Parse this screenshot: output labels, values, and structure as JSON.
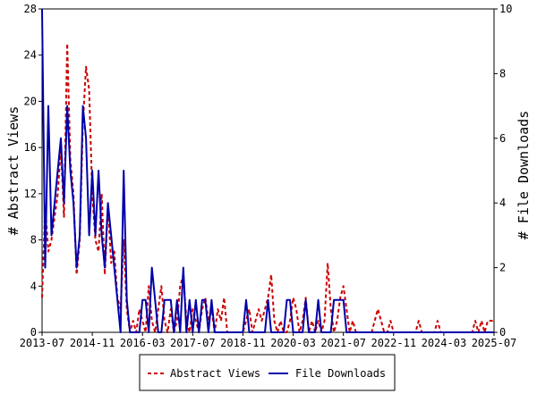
{
  "chart_data": {
    "type": "line",
    "title": "",
    "xlabel": "",
    "ylabel": "# Abstract Views",
    "y2label": "# File Downloads",
    "x_ticks": [
      "2013-07",
      "2014-11",
      "2016-03",
      "2017-07",
      "2018-11",
      "2020-03",
      "2021-07",
      "2022-11",
      "2024-03",
      "2025-07"
    ],
    "x_range": [
      "2013-07",
      "2025-07"
    ],
    "ylim": [
      0,
      28
    ],
    "y_ticks": [
      0,
      4,
      8,
      12,
      16,
      20,
      24,
      28
    ],
    "y2lim": [
      0,
      10
    ],
    "y2_ticks": [
      0,
      2,
      4,
      6,
      8,
      10
    ],
    "grid": false,
    "legend_position": "bottom-center",
    "series": [
      {
        "name": "Abstract Views",
        "axis": "left",
        "color": "#cc0000",
        "dash": "dashed",
        "points": [
          [
            "2013-07",
            3
          ],
          [
            "2013-08",
            11
          ],
          [
            "2013-09",
            7
          ],
          [
            "2013-10",
            8
          ],
          [
            "2013-11",
            10
          ],
          [
            "2013-12",
            12
          ],
          [
            "2014-01",
            16
          ],
          [
            "2014-02",
            10
          ],
          [
            "2014-03",
            25
          ],
          [
            "2014-04",
            15
          ],
          [
            "2014-05",
            12
          ],
          [
            "2014-06",
            5
          ],
          [
            "2014-07",
            8
          ],
          [
            "2014-08",
            18
          ],
          [
            "2014-09",
            23
          ],
          [
            "2014-10",
            21
          ],
          [
            "2014-11",
            12
          ],
          [
            "2014-12",
            8
          ],
          [
            "2015-01",
            7
          ],
          [
            "2015-02",
            12
          ],
          [
            "2015-03",
            5
          ],
          [
            "2015-04",
            11
          ],
          [
            "2015-05",
            6
          ],
          [
            "2015-06",
            7
          ],
          [
            "2015-07",
            3
          ],
          [
            "2015-08",
            2
          ],
          [
            "2015-09",
            8
          ],
          [
            "2015-10",
            2
          ],
          [
            "2015-11",
            0
          ],
          [
            "2015-12",
            1
          ],
          [
            "2016-01",
            0
          ],
          [
            "2016-02",
            2
          ],
          [
            "2016-03",
            1
          ],
          [
            "2016-04",
            0
          ],
          [
            "2016-05",
            4
          ],
          [
            "2016-06",
            1
          ],
          [
            "2016-07",
            0
          ],
          [
            "2016-08",
            2
          ],
          [
            "2016-09",
            4
          ],
          [
            "2016-10",
            1
          ],
          [
            "2016-11",
            0
          ],
          [
            "2016-12",
            2
          ],
          [
            "2017-01",
            0
          ],
          [
            "2017-02",
            1
          ],
          [
            "2017-03",
            4
          ],
          [
            "2017-04",
            5
          ],
          [
            "2017-05",
            1
          ],
          [
            "2017-06",
            0
          ],
          [
            "2017-07",
            2
          ],
          [
            "2017-08",
            1
          ],
          [
            "2017-09",
            0
          ],
          [
            "2017-10",
            2
          ],
          [
            "2017-11",
            3
          ],
          [
            "2017-12",
            1
          ],
          [
            "2018-01",
            2
          ],
          [
            "2018-02",
            0
          ],
          [
            "2018-03",
            2
          ],
          [
            "2018-04",
            1
          ],
          [
            "2018-05",
            3
          ],
          [
            "2018-06",
            0
          ],
          [
            "2018-07",
            0
          ],
          [
            "2018-08",
            0
          ],
          [
            "2018-09",
            0
          ],
          [
            "2018-10",
            0
          ],
          [
            "2018-11",
            0
          ],
          [
            "2018-12",
            1
          ],
          [
            "2019-01",
            2
          ],
          [
            "2019-02",
            0
          ],
          [
            "2019-03",
            1
          ],
          [
            "2019-04",
            2
          ],
          [
            "2019-05",
            1
          ],
          [
            "2019-06",
            2
          ],
          [
            "2019-07",
            3
          ],
          [
            "2019-08",
            5
          ],
          [
            "2019-09",
            1
          ],
          [
            "2019-10",
            0
          ],
          [
            "2019-11",
            1
          ],
          [
            "2019-12",
            0
          ],
          [
            "2020-01",
            0
          ],
          [
            "2020-02",
            1
          ],
          [
            "2020-03",
            3
          ],
          [
            "2020-04",
            2
          ],
          [
            "2020-05",
            0
          ],
          [
            "2020-06",
            1
          ],
          [
            "2020-07",
            3
          ],
          [
            "2020-08",
            0
          ],
          [
            "2020-09",
            1
          ],
          [
            "2020-10",
            0
          ],
          [
            "2020-11",
            1
          ],
          [
            "2020-12",
            0
          ],
          [
            "2021-01",
            1
          ],
          [
            "2021-02",
            6
          ],
          [
            "2021-03",
            2
          ],
          [
            "2021-04",
            0
          ],
          [
            "2021-05",
            1
          ],
          [
            "2021-06",
            3
          ],
          [
            "2021-07",
            4
          ],
          [
            "2021-08",
            2
          ],
          [
            "2021-09",
            0
          ],
          [
            "2021-10",
            1
          ],
          [
            "2021-11",
            0
          ],
          [
            "2021-12",
            0
          ],
          [
            "2022-01",
            0
          ],
          [
            "2022-02",
            0
          ],
          [
            "2022-03",
            0
          ],
          [
            "2022-04",
            0
          ],
          [
            "2022-05",
            1
          ],
          [
            "2022-06",
            2
          ],
          [
            "2022-07",
            1
          ],
          [
            "2022-08",
            0
          ],
          [
            "2022-09",
            0
          ],
          [
            "2022-10",
            1
          ],
          [
            "2022-11",
            0
          ],
          [
            "2023-01",
            0
          ],
          [
            "2023-06",
            0
          ],
          [
            "2023-07",
            1
          ],
          [
            "2023-08",
            0
          ],
          [
            "2023-12",
            0
          ],
          [
            "2024-01",
            1
          ],
          [
            "2024-02",
            0
          ],
          [
            "2024-12",
            0
          ],
          [
            "2025-01",
            1
          ],
          [
            "2025-02",
            0
          ],
          [
            "2025-03",
            1
          ],
          [
            "2025-04",
            0
          ],
          [
            "2025-05",
            1
          ],
          [
            "2025-06",
            1
          ],
          [
            "2025-07",
            1
          ]
        ]
      },
      {
        "name": "File Downloads",
        "axis": "right",
        "color": "#0000aa",
        "dash": "solid",
        "points": [
          [
            "2013-07",
            10
          ],
          [
            "2013-08",
            2
          ],
          [
            "2013-09",
            7
          ],
          [
            "2013-10",
            3
          ],
          [
            "2013-11",
            4
          ],
          [
            "2013-12",
            5
          ],
          [
            "2014-01",
            6
          ],
          [
            "2014-02",
            4
          ],
          [
            "2014-03",
            7
          ],
          [
            "2014-04",
            5
          ],
          [
            "2014-05",
            4
          ],
          [
            "2014-06",
            2
          ],
          [
            "2014-07",
            3
          ],
          [
            "2014-08",
            7
          ],
          [
            "2014-09",
            6
          ],
          [
            "2014-10",
            3
          ],
          [
            "2014-11",
            5
          ],
          [
            "2014-12",
            3
          ],
          [
            "2015-01",
            5
          ],
          [
            "2015-02",
            3
          ],
          [
            "2015-03",
            2
          ],
          [
            "2015-04",
            4
          ],
          [
            "2015-05",
            3
          ],
          [
            "2015-06",
            2
          ],
          [
            "2015-07",
            1
          ],
          [
            "2015-08",
            0
          ],
          [
            "2015-09",
            5
          ],
          [
            "2015-10",
            1
          ],
          [
            "2015-11",
            0
          ],
          [
            "2015-12",
            0
          ],
          [
            "2016-01",
            0
          ],
          [
            "2016-02",
            0
          ],
          [
            "2016-03",
            1
          ],
          [
            "2016-04",
            1
          ],
          [
            "2016-05",
            0
          ],
          [
            "2016-06",
            2
          ],
          [
            "2016-07",
            1
          ],
          [
            "2016-08",
            0
          ],
          [
            "2016-09",
            0
          ],
          [
            "2016-10",
            1
          ],
          [
            "2016-11",
            1
          ],
          [
            "2016-12",
            1
          ],
          [
            "2017-01",
            0
          ],
          [
            "2017-02",
            1
          ],
          [
            "2017-03",
            0
          ],
          [
            "2017-04",
            2
          ],
          [
            "2017-05",
            0
          ],
          [
            "2017-06",
            1
          ],
          [
            "2017-07",
            0
          ],
          [
            "2017-08",
            1
          ],
          [
            "2017-09",
            0
          ],
          [
            "2017-10",
            1
          ],
          [
            "2017-11",
            1
          ],
          [
            "2017-12",
            0
          ],
          [
            "2018-01",
            1
          ],
          [
            "2018-02",
            0
          ],
          [
            "2018-03",
            0
          ],
          [
            "2018-04",
            0
          ],
          [
            "2018-05",
            0
          ],
          [
            "2018-06",
            0
          ],
          [
            "2018-07",
            0
          ],
          [
            "2018-08",
            0
          ],
          [
            "2018-09",
            0
          ],
          [
            "2018-10",
            0
          ],
          [
            "2018-11",
            0
          ],
          [
            "2018-12",
            1
          ],
          [
            "2019-01",
            0
          ],
          [
            "2019-02",
            0
          ],
          [
            "2019-03",
            0
          ],
          [
            "2019-04",
            0
          ],
          [
            "2019-05",
            0
          ],
          [
            "2019-06",
            0
          ],
          [
            "2019-07",
            1
          ],
          [
            "2019-08",
            0
          ],
          [
            "2019-09",
            0
          ],
          [
            "2019-10",
            0
          ],
          [
            "2019-11",
            0
          ],
          [
            "2019-12",
            0
          ],
          [
            "2020-01",
            1
          ],
          [
            "2020-02",
            1
          ],
          [
            "2020-03",
            0
          ],
          [
            "2020-04",
            0
          ],
          [
            "2020-05",
            0
          ],
          [
            "2020-06",
            0
          ],
          [
            "2020-07",
            1
          ],
          [
            "2020-08",
            0
          ],
          [
            "2020-09",
            0
          ],
          [
            "2020-10",
            0
          ],
          [
            "2020-11",
            1
          ],
          [
            "2020-12",
            0
          ],
          [
            "2021-01",
            0
          ],
          [
            "2021-02",
            0
          ],
          [
            "2021-03",
            0
          ],
          [
            "2021-04",
            1
          ],
          [
            "2021-05",
            1
          ],
          [
            "2021-06",
            1
          ],
          [
            "2021-07",
            1
          ],
          [
            "2021-08",
            0
          ],
          [
            "2021-09",
            0
          ],
          [
            "2025-07",
            0
          ]
        ]
      }
    ]
  }
}
